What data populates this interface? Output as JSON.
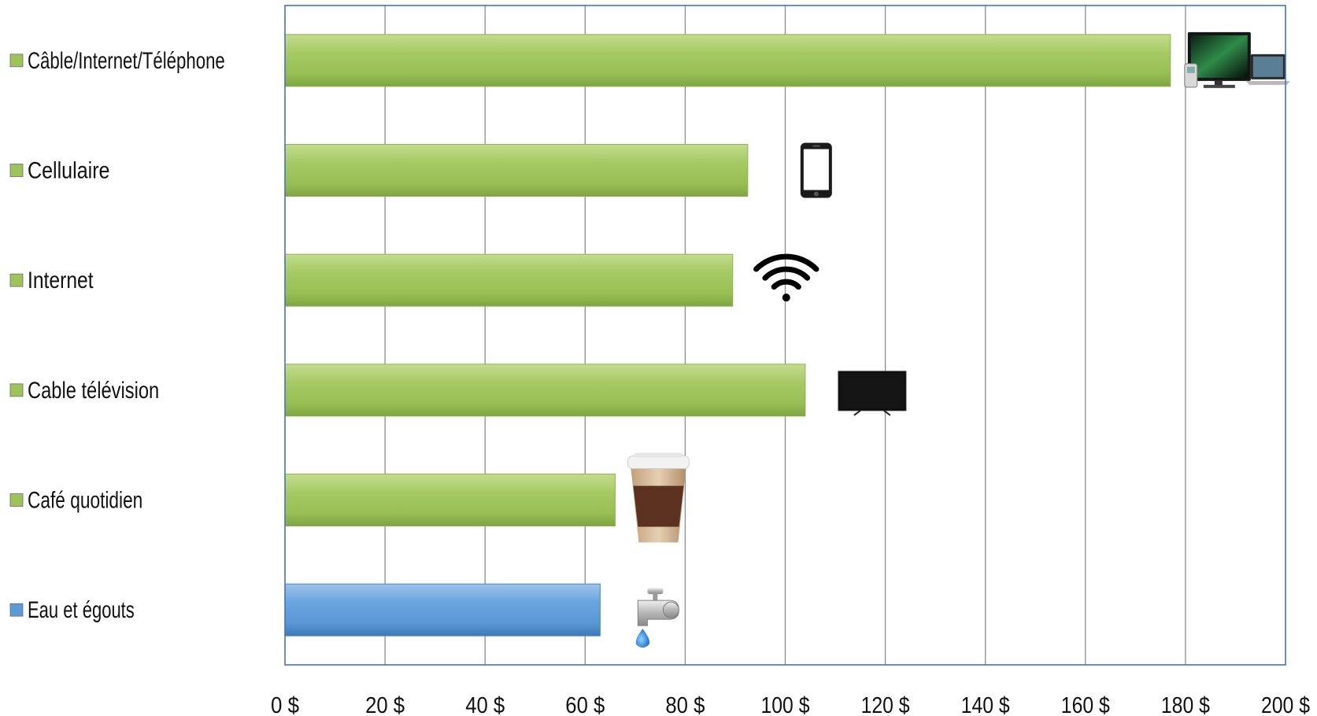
{
  "chart_data": {
    "type": "bar",
    "orientation": "horizontal",
    "title": "",
    "xlabel": "",
    "ylabel": "",
    "categories": [
      "Câble/Internet/Téléphone",
      "Cellulaire",
      "Internet",
      "Cable télévision",
      "Café quotidien",
      "Eau et égouts"
    ],
    "values": [
      177,
      92.5,
      89.5,
      104,
      66,
      63
    ],
    "bar_colors": [
      "#9dc35a",
      "#9dc35a",
      "#9dc35a",
      "#9dc35a",
      "#9dc35a",
      "#5b9bd5"
    ],
    "bar_icons": [
      "tv-laptop-phone-icon",
      "smartphone-icon",
      "wifi-icon",
      "television-icon",
      "coffee-cup-icon",
      "water-faucet-icon"
    ],
    "xlim": [
      0,
      200
    ],
    "x_ticks": [
      0,
      20,
      40,
      60,
      80,
      100,
      120,
      140,
      160,
      180,
      200
    ],
    "x_tick_labels": [
      "0 $",
      "20 $",
      "40 $",
      "60 $",
      "80 $",
      "100 $",
      "120 $",
      "140 $",
      "160 $",
      "180 $",
      "200 $"
    ],
    "grid": true,
    "legend": "none",
    "axis_color": "#4472c4",
    "grid_color": "#8c8c8c"
  }
}
